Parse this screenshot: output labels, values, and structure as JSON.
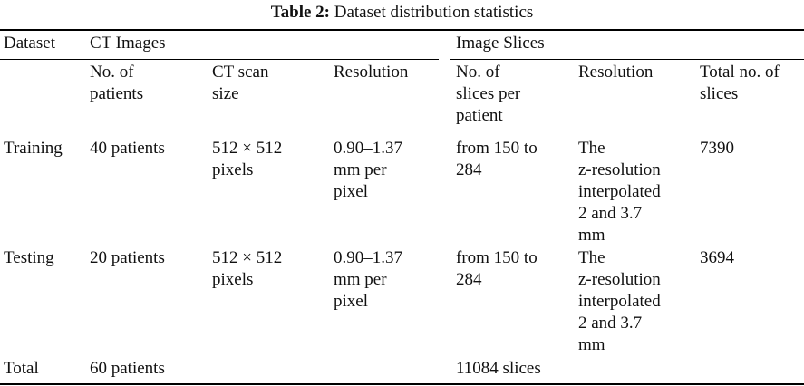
{
  "caption": {
    "label": "Table 2:",
    "text": "Dataset distribution statistics"
  },
  "header": {
    "dataset": "Dataset",
    "ct_images": "CT Images",
    "image_slices": "Image Slices",
    "sub": {
      "patients": [
        "No. of",
        "patients"
      ],
      "scan_size": [
        "CT scan",
        "size"
      ],
      "ct_resolution": [
        "Resolution"
      ],
      "slices_per_patient": [
        "No. of",
        "slices per",
        "patient"
      ],
      "slice_resolution": [
        "Resolution"
      ],
      "total_slices": [
        "Total no. of",
        "slices"
      ]
    }
  },
  "rows": [
    {
      "dataset": [
        "Training"
      ],
      "patients": [
        "40 patients"
      ],
      "scan_size": [
        "512 × 512",
        "pixels"
      ],
      "ct_resolution": [
        "0.90–1.37",
        "mm per",
        "pixel"
      ],
      "slices_per_patient": [
        "from 150 to",
        "284"
      ],
      "slice_resolution": [
        "The",
        "z-resolution",
        "interpolated",
        "2 and 3.7",
        "mm"
      ],
      "total_slices": [
        "7390"
      ]
    },
    {
      "dataset": [
        "Testing"
      ],
      "patients": [
        "20 patients"
      ],
      "scan_size": [
        "512 × 512",
        "pixels"
      ],
      "ct_resolution": [
        "0.90–1.37",
        "mm per",
        "pixel"
      ],
      "slices_per_patient": [
        "from 150 to",
        "284"
      ],
      "slice_resolution": [
        "The",
        "z-resolution",
        "interpolated",
        "2 and 3.7",
        "mm"
      ],
      "total_slices": [
        "3694"
      ]
    }
  ],
  "total": {
    "dataset": "Total",
    "patients": "60 patients",
    "slices": "11084 slices"
  }
}
